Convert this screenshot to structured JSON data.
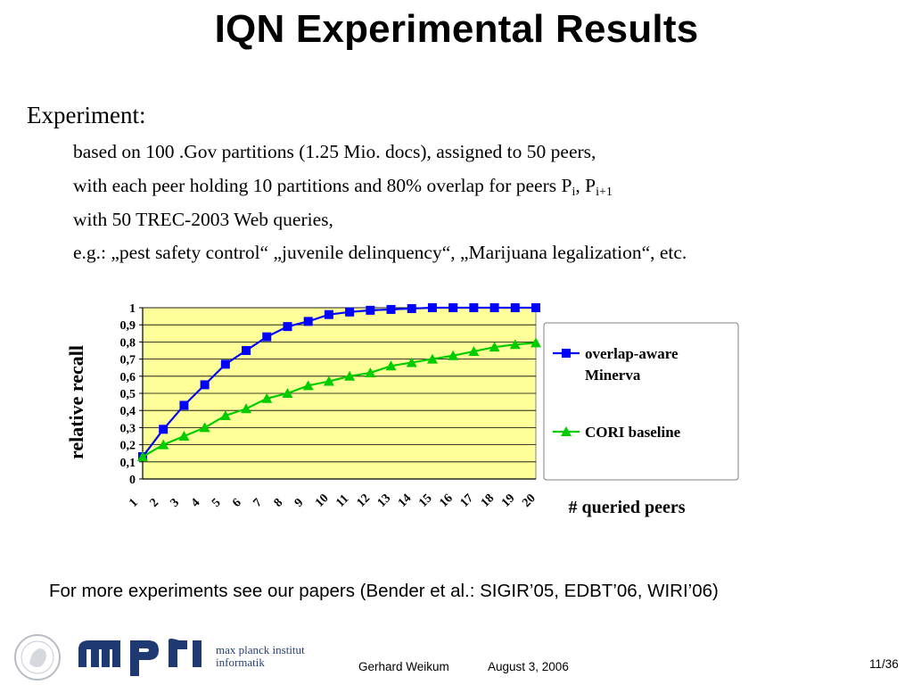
{
  "slide": {
    "title": "IQN Experimental Results",
    "experiment_heading": "Experiment:",
    "lines": {
      "l1": "based on 100 .Gov partitions (1.25 Mio. docs), assigned to 50 peers,",
      "l2_main": "with each peer holding 10 partitions and 80% overlap for peers P",
      "l2_sub1": "i",
      "l2_sep": ", P",
      "l2_sub2": "i+1",
      "l3": "with 50 TREC-2003 Web queries,",
      "l4": "e.g.: „pest safety control“ „juvenile delinquency“, „Marijuana legalization“, etc."
    },
    "footer_note": "For more experiments see our papers (Bender et al.: SIGIR’05, EDBT’06, WIRI’06)",
    "logo": {
      "line1": "max planck institut",
      "line2": "informatik"
    },
    "presenter": "Gerhard Weikum",
    "date": "August 3, 2006",
    "slide_number": "11/36"
  },
  "colors": {
    "plot_background": "#ffff99",
    "series_minerva": "#0000ff",
    "series_cori": "#00cc00",
    "logo_blue": "#1f3a73"
  },
  "chart_data": {
    "type": "line",
    "xlabel": "# queried peers",
    "ylabel": "relative recall",
    "categories": [
      "1",
      "2",
      "3",
      "4",
      "5",
      "6",
      "7",
      "8",
      "9",
      "10",
      "11",
      "12",
      "13",
      "14",
      "15",
      "16",
      "17",
      "18",
      "19",
      "20"
    ],
    "y_ticks": [
      "0",
      "0,1",
      "0,2",
      "0,3",
      "0,4",
      "0,5",
      "0,6",
      "0,7",
      "0,8",
      "0,9",
      "1"
    ],
    "ylim": [
      0,
      1
    ],
    "grid": true,
    "legend_position": "right",
    "series": [
      {
        "name": "overlap-aware Minerva",
        "name_line1": "overlap-aware",
        "name_line2": "Minerva",
        "marker": "square",
        "values": [
          0.13,
          0.29,
          0.43,
          0.55,
          0.67,
          0.75,
          0.83,
          0.89,
          0.92,
          0.96,
          0.975,
          0.985,
          0.99,
          0.995,
          1.0,
          1.0,
          1.0,
          1.0,
          1.0,
          1.0
        ]
      },
      {
        "name": "CORI baseline",
        "marker": "triangle",
        "values": [
          0.13,
          0.2,
          0.25,
          0.3,
          0.37,
          0.41,
          0.47,
          0.5,
          0.545,
          0.57,
          0.6,
          0.62,
          0.66,
          0.68,
          0.7,
          0.72,
          0.745,
          0.77,
          0.785,
          0.795
        ]
      }
    ]
  }
}
